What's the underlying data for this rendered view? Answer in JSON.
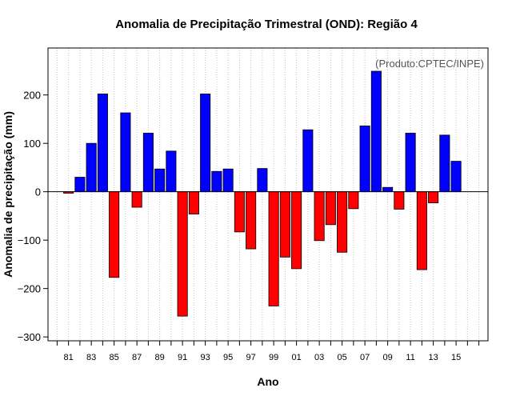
{
  "chart_data": {
    "type": "bar",
    "title": "Anomalia de Precipitação Trimestral (OND): Região 4",
    "xlabel": "Ano",
    "ylabel": "Anomalia de precipitação (mm)",
    "annotation": "(Produto:CPTEC/INPE)",
    "ylim": [
      -308,
      297
    ],
    "yticks": [
      -300,
      -200,
      -100,
      0,
      100,
      200
    ],
    "xlim": [
      1979.2,
      2017.8
    ],
    "grid": "vertical-dotted",
    "colors": {
      "positive": "#0000ff",
      "negative": "#ff0000",
      "zero_line": "#000000",
      "grid": "#c0c0c0"
    },
    "xtick_labels": [
      {
        "year": 1981,
        "label": "81"
      },
      {
        "year": 1983,
        "label": "83"
      },
      {
        "year": 1985,
        "label": "85"
      },
      {
        "year": 1987,
        "label": "87"
      },
      {
        "year": 1989,
        "label": "89"
      },
      {
        "year": 1991,
        "label": "91"
      },
      {
        "year": 1993,
        "label": "93"
      },
      {
        "year": 1995,
        "label": "95"
      },
      {
        "year": 1997,
        "label": "97"
      },
      {
        "year": 1999,
        "label": "99"
      },
      {
        "year": 2001,
        "label": "01"
      },
      {
        "year": 2003,
        "label": "03"
      },
      {
        "year": 2005,
        "label": "05"
      },
      {
        "year": 2007,
        "label": "07"
      },
      {
        "year": 2009,
        "label": "09"
      },
      {
        "year": 2011,
        "label": "11"
      },
      {
        "year": 2013,
        "label": "13"
      },
      {
        "year": 2015,
        "label": "15"
      }
    ],
    "x": [
      1981,
      1982,
      1983,
      1984,
      1985,
      1986,
      1987,
      1988,
      1989,
      1990,
      1991,
      1992,
      1993,
      1994,
      1995,
      1996,
      1997,
      1998,
      1999,
      2000,
      2001,
      2002,
      2003,
      2004,
      2005,
      2006,
      2007,
      2008,
      2009,
      2010,
      2011,
      2012,
      2013,
      2014,
      2015
    ],
    "values": [
      -3,
      30,
      100,
      202,
      -177,
      163,
      -32,
      121,
      47,
      84,
      -257,
      -46,
      202,
      42,
      47,
      -83,
      -118,
      48,
      -236,
      -135,
      -159,
      128,
      -101,
      -68,
      -125,
      -35,
      136,
      249,
      9,
      -36,
      121,
      -161,
      -23,
      117,
      63
    ]
  }
}
